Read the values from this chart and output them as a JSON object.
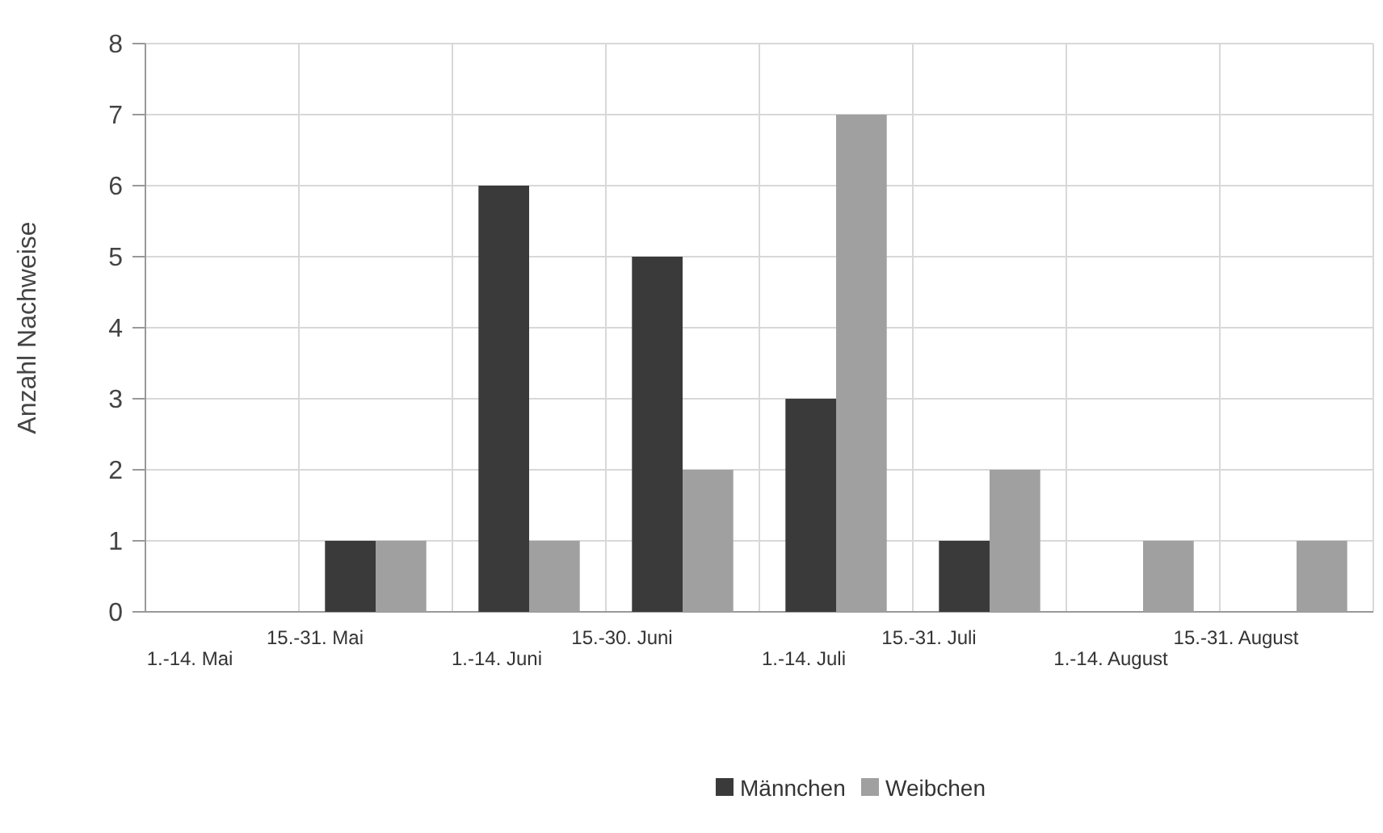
{
  "chart_data": {
    "type": "bar",
    "ylabel": "Anzahl Nachweise",
    "categories": [
      "1.-14. Mai",
      "15.-31. Mai",
      "1.-14. Juni",
      "15.-30. Juni",
      "1.-14. Juli",
      "15.-31. Juli",
      "1.-14. August",
      "15.-31. August"
    ],
    "series": [
      {
        "name": "Männchen",
        "color": "#3a3a3a",
        "values": [
          0,
          1,
          6,
          5,
          3,
          1,
          0,
          0
        ]
      },
      {
        "name": "Weibchen",
        "color": "#a0a0a0",
        "values": [
          0,
          1,
          1,
          2,
          7,
          2,
          1,
          1
        ]
      }
    ],
    "ylim": [
      0,
      8
    ],
    "yticks": [
      0,
      1,
      2,
      3,
      4,
      5,
      6,
      7,
      8
    ],
    "grid": true,
    "legend": "bottom"
  }
}
